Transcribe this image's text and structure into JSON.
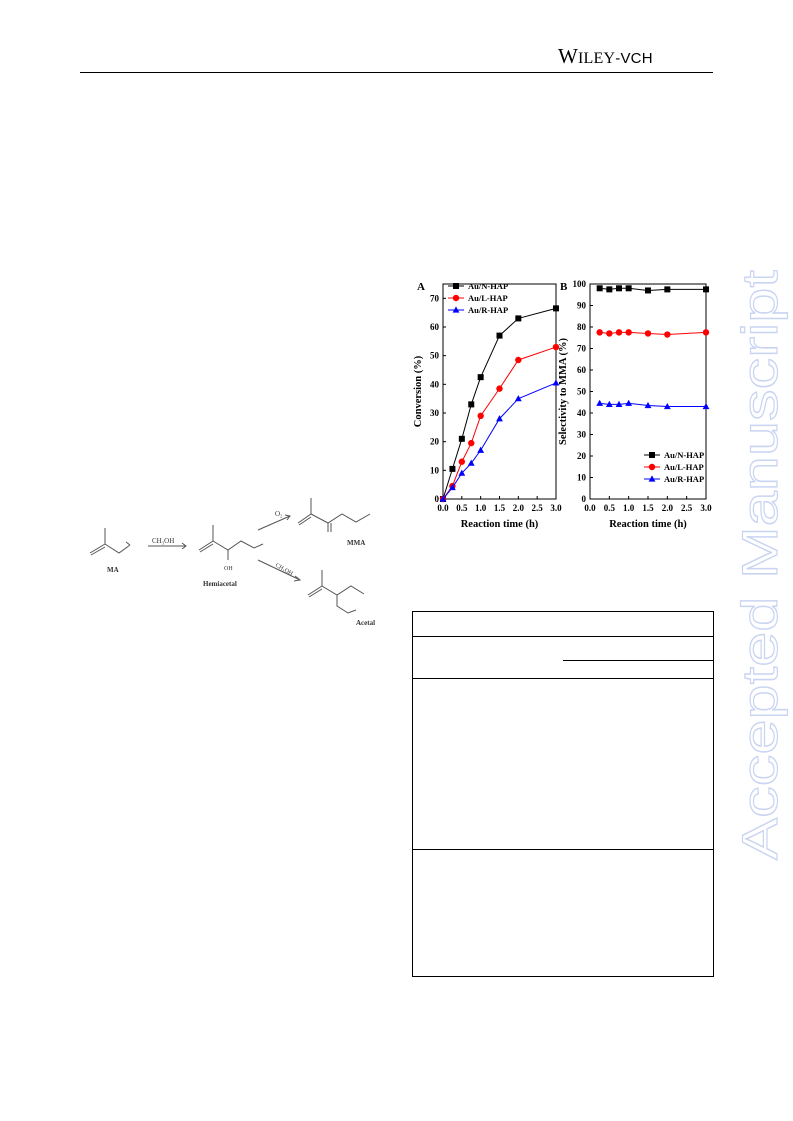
{
  "header": {
    "publisher_w": "W",
    "publisher_rest": "ILEY",
    "publisher_suffix": "-VCH"
  },
  "watermark": {
    "text": "Accepted Manuscript",
    "color": "#c9d4f2"
  },
  "scheme": {
    "reactant": "MA",
    "reagent_1": "CH₃OH",
    "intermediate": "Hemiacetal",
    "oh_label": "OH",
    "oxidant": "O₂",
    "product_1": "MMA",
    "reagent_2": "CH₃OH",
    "product_2": "Acetal"
  },
  "chart_data": [
    {
      "type": "line",
      "panel_label": "A",
      "xlabel": "Reaction time (h)",
      "ylabel": "Conversion (%)",
      "xlim": [
        0.0,
        3.0
      ],
      "ylim": [
        0,
        75
      ],
      "xticks": [
        "0.0",
        "0.5",
        "1.0",
        "1.5",
        "2.0",
        "2.5",
        "3.0"
      ],
      "yticks": [
        "0",
        "10",
        "20",
        "30",
        "40",
        "50",
        "60",
        "70"
      ],
      "legend_position": "top-left",
      "series": [
        {
          "name": "Au/N-HAP",
          "color": "#000000",
          "marker": "square",
          "x": [
            0,
            0.25,
            0.5,
            0.75,
            1.0,
            1.5,
            2.0,
            3.0
          ],
          "y": [
            0,
            10.5,
            21,
            33,
            42.5,
            57,
            63,
            66.5
          ]
        },
        {
          "name": "Au/L-HAP",
          "color": "#ff0000",
          "marker": "circle",
          "x": [
            0,
            0.25,
            0.5,
            0.75,
            1.0,
            1.5,
            2.0,
            3.0
          ],
          "y": [
            0,
            4.5,
            13,
            19.5,
            29,
            38.5,
            48.5,
            53
          ]
        },
        {
          "name": "Au/R-HAP",
          "color": "#0000ff",
          "marker": "triangle",
          "x": [
            0,
            0.25,
            0.5,
            0.75,
            1.0,
            1.5,
            2.0,
            3.0
          ],
          "y": [
            0,
            4,
            9,
            12.5,
            17,
            28,
            35,
            40.5
          ]
        }
      ]
    },
    {
      "type": "line",
      "panel_label": "B",
      "xlabel": "Reaction time (h)",
      "ylabel": "Selectivity to MMA (%)",
      "xlim": [
        0.0,
        3.0
      ],
      "ylim": [
        0,
        100
      ],
      "xticks": [
        "0.0",
        "0.5",
        "1.0",
        "1.5",
        "2.0",
        "2.5",
        "3.0"
      ],
      "yticks": [
        "0",
        "10",
        "20",
        "30",
        "40",
        "50",
        "60",
        "70",
        "80",
        "90",
        "100"
      ],
      "legend_position": "bottom-right",
      "series": [
        {
          "name": "Au/N-HAP",
          "color": "#000000",
          "marker": "square",
          "x": [
            0.25,
            0.5,
            0.75,
            1.0,
            1.5,
            2.0,
            3.0
          ],
          "y": [
            98,
            97.5,
            98,
            98,
            97,
            97.5,
            97.5
          ]
        },
        {
          "name": "Au/L-HAP",
          "color": "#ff0000",
          "marker": "circle",
          "x": [
            0.25,
            0.5,
            0.75,
            1.0,
            1.5,
            2.0,
            3.0
          ],
          "y": [
            77.5,
            77,
            77.5,
            77.5,
            77,
            76.5,
            77.5
          ]
        },
        {
          "name": "Au/R-HAP",
          "color": "#0000ff",
          "marker": "triangle",
          "x": [
            0.25,
            0.5,
            0.75,
            1.0,
            1.5,
            2.0,
            3.0
          ],
          "y": [
            44.5,
            44,
            44,
            44.5,
            43.5,
            43,
            43
          ]
        }
      ]
    }
  ]
}
